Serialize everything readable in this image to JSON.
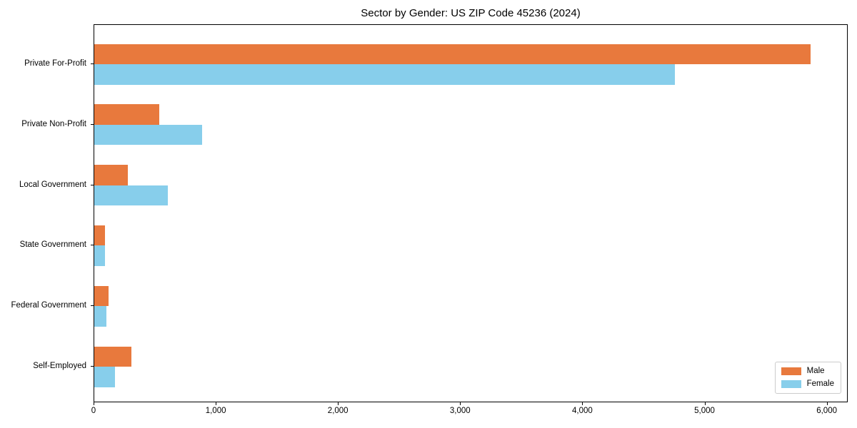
{
  "chart_data": {
    "type": "bar",
    "orientation": "horizontal",
    "title": "Sector by Gender: US ZIP Code 45236 (2024)",
    "categories": [
      "Private For-Profit",
      "Private Non-Profit",
      "Local Government",
      "State Government",
      "Federal Government",
      "Self-Employed"
    ],
    "series": [
      {
        "name": "Male",
        "color": "#e8793d",
        "values": [
          5860,
          530,
          275,
          90,
          115,
          305
        ]
      },
      {
        "name": "Female",
        "color": "#87ceeb",
        "values": [
          4750,
          885,
          600,
          90,
          100,
          170
        ]
      }
    ],
    "xlabel": "",
    "ylabel": "",
    "xlim": [
      0,
      6160
    ],
    "x_ticks": [
      0,
      1000,
      2000,
      3000,
      4000,
      5000,
      6000
    ],
    "x_tick_labels": [
      "0",
      "1,000",
      "2,000",
      "3,000",
      "4,000",
      "5,000",
      "6,000"
    ],
    "grid": false,
    "legend_position": "lower right",
    "frame_color": "#000000",
    "background_color": "#ffffff"
  }
}
